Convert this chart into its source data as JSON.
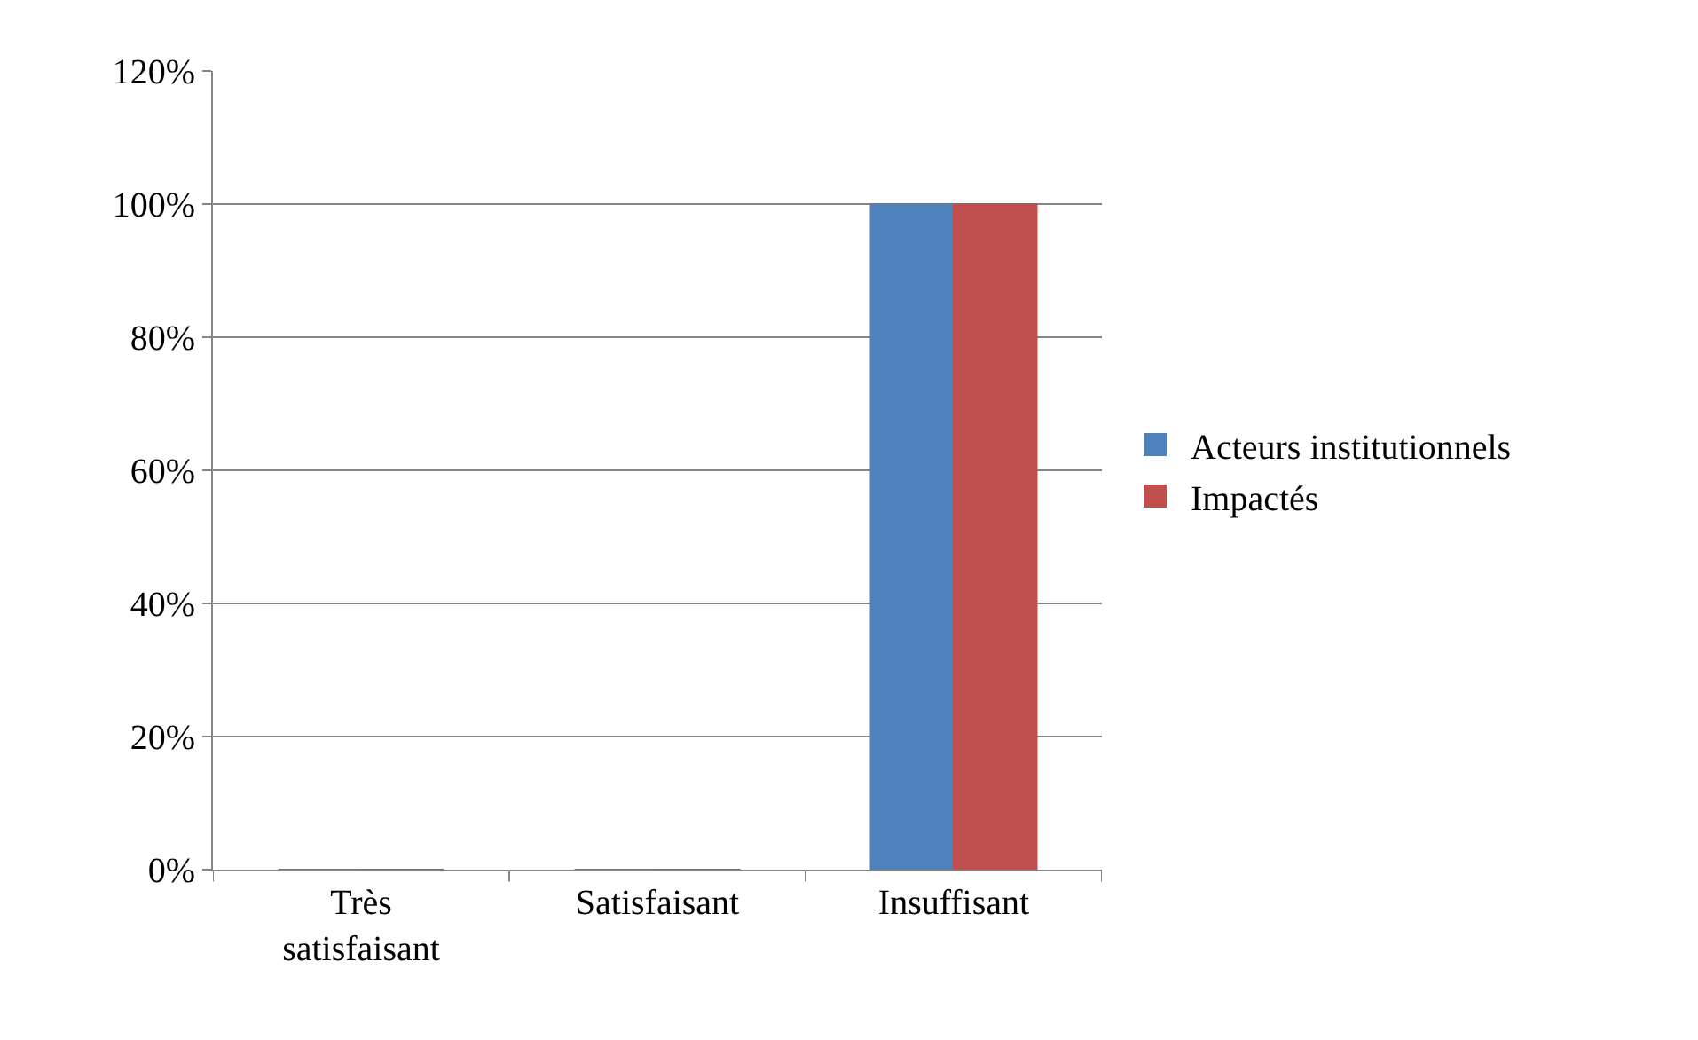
{
  "chart_data": {
    "type": "bar",
    "categories": [
      "Très satisfaisant",
      "Satisfaisant",
      "Insuffisant"
    ],
    "series": [
      {
        "name": "Acteurs institutionnels",
        "color": "#4f81bd",
        "values": [
          0,
          0,
          100
        ]
      },
      {
        "name": "Impactés",
        "color": "#c0504d",
        "values": [
          0,
          0,
          100
        ]
      }
    ],
    "ylim": [
      0,
      120
    ],
    "yticks": [
      {
        "value": 0,
        "label": "0%"
      },
      {
        "value": 20,
        "label": "20%"
      },
      {
        "value": 40,
        "label": "40%"
      },
      {
        "value": 60,
        "label": "60%"
      },
      {
        "value": 80,
        "label": "80%"
      },
      {
        "value": 100,
        "label": "100%"
      },
      {
        "value": 120,
        "label": "120%"
      }
    ],
    "grid": "y",
    "legend": "right"
  }
}
